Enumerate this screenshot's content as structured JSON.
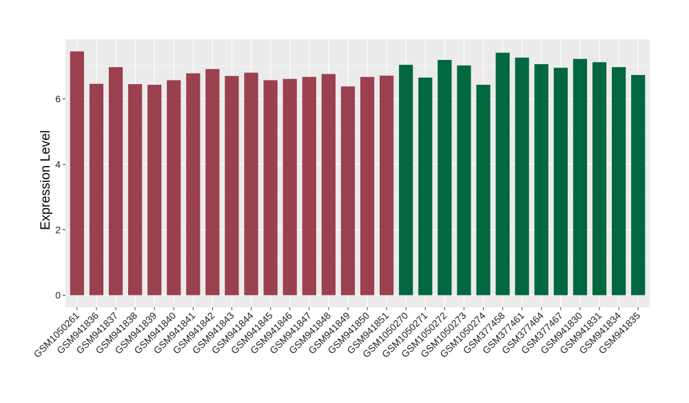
{
  "chart_data": {
    "type": "bar",
    "ylabel": "Expression Level",
    "xlabel": "",
    "title": "",
    "ylim": [
      0,
      7.85
    ],
    "yticks": [
      0,
      2,
      4,
      6
    ],
    "grid": true,
    "legend": "none",
    "panel_background": "#ebebeb",
    "gridline_color": "#ffffff",
    "group_colors": [
      "#9a404e",
      "#00673f"
    ],
    "bars": [
      {
        "label": "GSM1050261",
        "value": 7.45,
        "group": 0
      },
      {
        "label": "GSM941836",
        "value": 6.46,
        "group": 0
      },
      {
        "label": "GSM941837",
        "value": 6.97,
        "group": 0
      },
      {
        "label": "GSM941838",
        "value": 6.45,
        "group": 0
      },
      {
        "label": "GSM941839",
        "value": 6.43,
        "group": 0
      },
      {
        "label": "GSM941840",
        "value": 6.57,
        "group": 0
      },
      {
        "label": "GSM941841",
        "value": 6.78,
        "group": 0
      },
      {
        "label": "GSM941842",
        "value": 6.91,
        "group": 0
      },
      {
        "label": "GSM941843",
        "value": 6.7,
        "group": 0
      },
      {
        "label": "GSM941844",
        "value": 6.8,
        "group": 0
      },
      {
        "label": "GSM941845",
        "value": 6.57,
        "group": 0
      },
      {
        "label": "GSM941846",
        "value": 6.61,
        "group": 0
      },
      {
        "label": "GSM941847",
        "value": 6.67,
        "group": 0
      },
      {
        "label": "GSM941848",
        "value": 6.76,
        "group": 0
      },
      {
        "label": "GSM941849",
        "value": 6.38,
        "group": 0
      },
      {
        "label": "GSM941850",
        "value": 6.67,
        "group": 0
      },
      {
        "label": "GSM941851",
        "value": 6.71,
        "group": 0
      },
      {
        "label": "GSM1050270",
        "value": 7.04,
        "group": 1
      },
      {
        "label": "GSM1050271",
        "value": 6.65,
        "group": 1
      },
      {
        "label": "GSM1050272",
        "value": 7.19,
        "group": 1
      },
      {
        "label": "GSM1050273",
        "value": 7.02,
        "group": 1
      },
      {
        "label": "GSM1050274",
        "value": 6.43,
        "group": 1
      },
      {
        "label": "GSM377458",
        "value": 7.41,
        "group": 1
      },
      {
        "label": "GSM377461",
        "value": 7.26,
        "group": 1
      },
      {
        "label": "GSM377464",
        "value": 7.06,
        "group": 1
      },
      {
        "label": "GSM377467",
        "value": 6.95,
        "group": 1
      },
      {
        "label": "GSM941830",
        "value": 7.22,
        "group": 1
      },
      {
        "label": "GSM941831",
        "value": 7.12,
        "group": 1
      },
      {
        "label": "GSM941834",
        "value": 6.97,
        "group": 1
      },
      {
        "label": "GSM941835",
        "value": 6.73,
        "group": 1
      }
    ]
  }
}
